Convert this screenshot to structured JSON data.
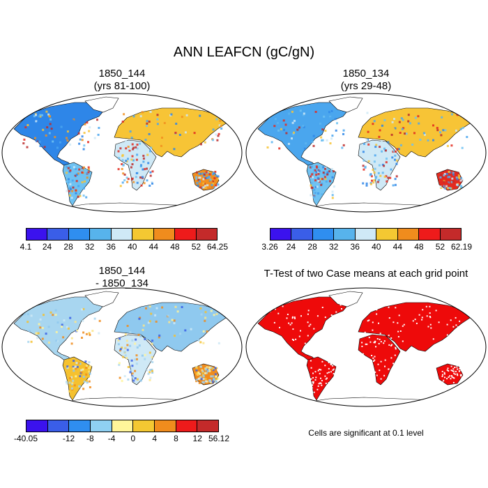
{
  "main_title": "ANN LEAFCN (gC/gN)",
  "panels": [
    {
      "id": "p1",
      "title_line1": "1850_144",
      "title_line2": "(yrs 81-100)",
      "fills": [
        "#2e86e8",
        "#4aa6ee",
        "#6fc2f2",
        "#cfe9f6",
        "#f7c436",
        "#f28f1f",
        "#e32a1f",
        "#bb2b2b"
      ],
      "colorbar": {
        "colors": [
          "#3b12ee",
          "#3a5ee8",
          "#2f8ef0",
          "#57b3ec",
          "#cfe9f6",
          "#f4c832",
          "#f08c1d",
          "#ee1b1b",
          "#c42a2a"
        ],
        "labels": [
          "4.1",
          "24",
          "28",
          "32",
          "36",
          "40",
          "44",
          "48",
          "52",
          "64.25"
        ]
      }
    },
    {
      "id": "p2",
      "title_line1": "1850_134",
      "title_line2": "(yrs 29-48)",
      "fills": [
        "#4aa6ee",
        "#5cb4ee",
        "#6fc2f2",
        "#cfe9f6",
        "#f7c436",
        "#e32a1f",
        "#bb2b2b",
        "#2e86e8"
      ],
      "colorbar": {
        "colors": [
          "#3b12ee",
          "#3a5ee8",
          "#2f8ef0",
          "#57b3ec",
          "#cfe9f6",
          "#f4c832",
          "#f08c1d",
          "#ee1b1b",
          "#c42a2a"
        ],
        "labels": [
          "3.26",
          "24",
          "28",
          "32",
          "36",
          "40",
          "44",
          "48",
          "52",
          "62.19"
        ]
      }
    },
    {
      "id": "p3",
      "title_line1": "1850_144",
      "title_line2": "- 1850_134",
      "fills": [
        "#a8d6f0",
        "#fbe58a",
        "#f5c12f",
        "#cfe9f6",
        "#8fc9ef",
        "#f08c1d",
        "#3b62e6",
        "#fff49b"
      ],
      "colorbar": {
        "colors": [
          "#3b12ee",
          "#3a5ee8",
          "#2f8ef0",
          "#8fd0f2",
          "#fff59a",
          "#f4c832",
          "#f08c1d",
          "#ee1b1b",
          "#c42a2a"
        ],
        "labels": [
          "-40.05",
          "-12",
          "-8",
          "-4",
          "0",
          "4",
          "8",
          "12",
          "56.12"
        ]
      }
    },
    {
      "id": "p4",
      "title": "T-Test of two Case means at each grid point",
      "fills": [
        "#ee0a0a",
        "#ee0a0a",
        "#ee0a0a",
        "#ee0a0a",
        "#ee0a0a",
        "#ee0a0a",
        "#ee0a0a",
        "#ee0a0a"
      ],
      "note": "Cells are significant at 0.1 level"
    }
  ]
}
